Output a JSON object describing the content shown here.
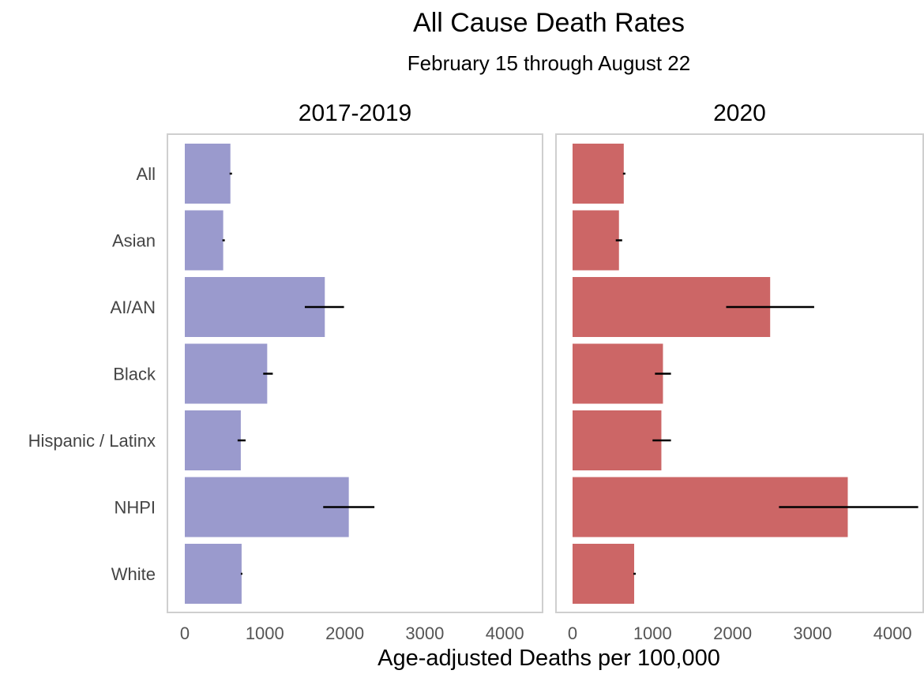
{
  "chart_data": {
    "type": "bar",
    "orientation": "horizontal",
    "title": "All Cause Death Rates",
    "subtitle": "February 15 through August 22",
    "xlabel": "Age-adjusted Deaths per 100,000",
    "categories": [
      "All",
      "Asian",
      "AI/AN",
      "Black",
      "Hispanic / Latinx",
      "NHPI",
      "White"
    ],
    "xlim": [
      0,
      4300
    ],
    "xticks": [
      0,
      1000,
      2000,
      3000,
      4000
    ],
    "grid": false,
    "legend": "none",
    "panels": [
      {
        "title": "2017-2019",
        "color": "#9a9acd",
        "values": [
          570,
          480,
          1750,
          1030,
          700,
          2050,
          710
        ],
        "error_low": [
          560,
          470,
          1500,
          980,
          660,
          1730,
          700
        ],
        "error_high": [
          590,
          500,
          1990,
          1100,
          760,
          2370,
          720
        ]
      },
      {
        "title": "2020",
        "color": "#cc6666",
        "values": [
          640,
          580,
          2470,
          1130,
          1110,
          3440,
          770
        ],
        "error_low": [
          630,
          540,
          1920,
          1030,
          1000,
          2580,
          760
        ],
        "error_high": [
          660,
          620,
          3020,
          1230,
          1230,
          4320,
          790
        ]
      }
    ]
  }
}
